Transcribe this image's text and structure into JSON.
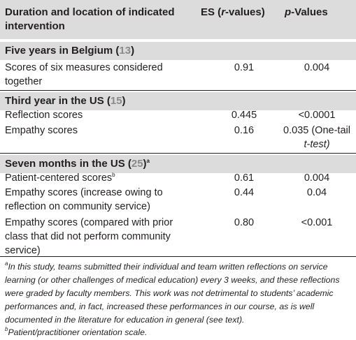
{
  "header": {
    "col1_line1": "Duration and location of indicated",
    "col1_line2": "intervention",
    "col2_pre": "ES (",
    "col2_ital": "r",
    "col2_post": "-values)",
    "col3_ital": "p",
    "col3_post": "-Values"
  },
  "sections": [
    {
      "title": "Five years in Belgium (",
      "ref": "13",
      "title_end": ")",
      "rows": [
        {
          "label_lines": [
            "Scores of six measures considered",
            "together"
          ],
          "es": "0.91",
          "p_lines": [
            "0.004"
          ]
        }
      ]
    },
    {
      "title": "Third year in the US (",
      "ref": "15",
      "title_end": ")",
      "rows": [
        {
          "label_lines": [
            "Reflection scores"
          ],
          "es": "0.445",
          "p_lines": [
            "<0.0001"
          ]
        },
        {
          "label_lines": [
            "Empathy scores"
          ],
          "es": "0.16",
          "p_lines": [
            "0.035 (One-tail",
            "t-test)"
          ]
        }
      ]
    },
    {
      "title": "Seven months in the US (",
      "ref": "25",
      "title_end": ")",
      "title_sup": "a",
      "rows": [
        {
          "label_lines": [
            "Patient-centered scores"
          ],
          "label_sup": "b",
          "es": "0.61",
          "p_lines": [
            "0.004"
          ]
        },
        {
          "label_lines": [
            "Empathy scores (increase owing to",
            "reflection on community service)"
          ],
          "es": "0.44",
          "p_lines": [
            "0.04"
          ]
        },
        {
          "label_lines": [
            "Empathy scores (compared with prior",
            "class that did not perform community",
            "service)"
          ],
          "es": "0.80",
          "p_lines": [
            "<0.001"
          ]
        }
      ]
    }
  ],
  "footnotes": {
    "a_marker": "a",
    "a_lines": [
      "In this study, teams submitted their individual and team written reflections on service",
      "learning (or other challenges of medical education) every 3 weeks, and these reflections",
      "were graded by faculty members. This work was not detrimental to students’ academic",
      "performances and, in fact, increased these performances in our course, as is well",
      "documented in the literature for education in general (see text)."
    ],
    "b_marker": "b",
    "b_text": "Patient/practitioner orientation scale."
  }
}
